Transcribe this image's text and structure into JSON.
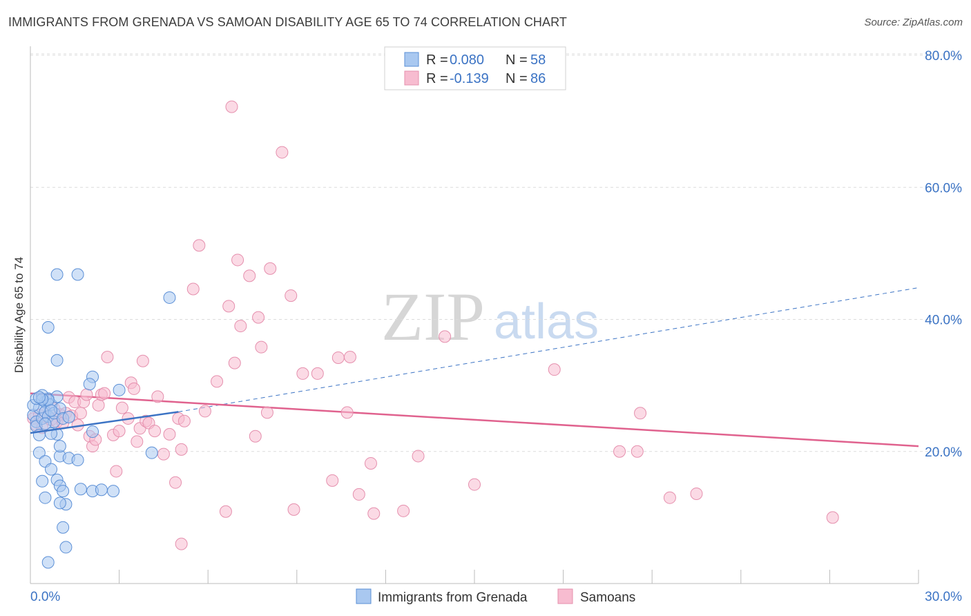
{
  "title": "IMMIGRANTS FROM GRENADA VS SAMOAN DISABILITY AGE 65 TO 74 CORRELATION CHART",
  "source": "Source: ZipAtlas.com",
  "watermark": {
    "zip": "ZIP",
    "atlas": "atlas"
  },
  "colors": {
    "blue_fill": "#a9c8f0",
    "blue_stroke": "#5b8fd6",
    "blue_line": "#3b73c4",
    "pink_fill": "#f7bcd0",
    "pink_stroke": "#e58fad",
    "pink_line": "#e0628e",
    "tick_text": "#3b73c4",
    "grid": "#dcdcdc"
  },
  "legend": {
    "rows": [
      {
        "r_label": "R =",
        "r_value": "0.080",
        "n_label": "N =",
        "n_value": "58"
      },
      {
        "r_label": "R =",
        "r_value": "-0.139",
        "n_label": "N =",
        "n_value": "86"
      }
    ]
  },
  "bottom_legend": [
    "Immigrants from Grenada",
    "Samoans"
  ],
  "chart_data": {
    "type": "scatter",
    "title": "IMMIGRANTS FROM GRENADA VS SAMOAN DISABILITY AGE 65 TO 74 CORRELATION CHART",
    "xlabel": "",
    "ylabel": "Disability Age 65 to 74",
    "xlim": [
      0,
      30
    ],
    "ylim": [
      0,
      80
    ],
    "x_tick_labels": [
      "0.0%",
      "30.0%"
    ],
    "y_ticks": [
      20,
      40,
      60,
      80
    ],
    "y_tick_labels": [
      "20.0%",
      "40.0%",
      "60.0%",
      "80.0%"
    ],
    "grid": "horizontal dashed",
    "legend_position": "top-center",
    "series": [
      {
        "name": "Immigrants from Grenada",
        "r": 0.08,
        "n": 58,
        "trend": {
          "x": [
            0.0,
            5.0
          ],
          "y": [
            22.8,
            26.0
          ],
          "extended": {
            "x": [
              5.0,
              30.0
            ],
            "y": [
              26.0,
              44.8
            ]
          }
        },
        "points": [
          [
            0.1,
            25.5
          ],
          [
            0.2,
            24.5
          ],
          [
            0.3,
            26.6
          ],
          [
            0.2,
            23.8
          ],
          [
            0.1,
            27.0
          ],
          [
            0.2,
            28.0
          ],
          [
            0.3,
            22.5
          ],
          [
            0.4,
            25.0
          ],
          [
            0.5,
            27.5
          ],
          [
            0.5,
            26.0
          ],
          [
            0.6,
            28.0
          ],
          [
            0.4,
            28.5
          ],
          [
            0.6,
            25.3
          ],
          [
            0.7,
            27.1
          ],
          [
            0.8,
            24.5
          ],
          [
            0.9,
            22.6
          ],
          [
            0.7,
            22.7
          ],
          [
            0.8,
            25.8
          ],
          [
            0.9,
            28.3
          ],
          [
            1.0,
            26.5
          ],
          [
            1.1,
            25.0
          ],
          [
            0.6,
            27.8
          ],
          [
            0.7,
            26.2
          ],
          [
            1.3,
            25.2
          ],
          [
            0.3,
            19.8
          ],
          [
            0.5,
            18.5
          ],
          [
            0.7,
            17.3
          ],
          [
            0.9,
            15.7
          ],
          [
            1.0,
            14.8
          ],
          [
            1.1,
            14.0
          ],
          [
            0.4,
            15.5
          ],
          [
            1.2,
            12.0
          ],
          [
            1.0,
            12.2
          ],
          [
            0.5,
            13.0
          ],
          [
            1.1,
            8.5
          ],
          [
            1.2,
            5.5
          ],
          [
            0.6,
            3.2
          ],
          [
            1.0,
            19.3
          ],
          [
            1.3,
            19.0
          ],
          [
            1.0,
            20.8
          ],
          [
            1.6,
            18.7
          ],
          [
            1.7,
            14.3
          ],
          [
            2.1,
            14.0
          ],
          [
            2.4,
            14.2
          ],
          [
            2.8,
            14.0
          ],
          [
            2.1,
            23.0
          ],
          [
            2.1,
            31.3
          ],
          [
            2.0,
            30.2
          ],
          [
            3.0,
            29.3
          ],
          [
            0.9,
            33.8
          ],
          [
            0.6,
            38.8
          ],
          [
            0.9,
            46.8
          ],
          [
            1.6,
            46.8
          ],
          [
            4.7,
            43.3
          ],
          [
            4.1,
            19.8
          ],
          [
            0.4,
            27.9
          ],
          [
            0.3,
            28.2
          ],
          [
            0.5,
            24.2
          ]
        ]
      },
      {
        "name": "Samoans",
        "r": -0.139,
        "n": 86,
        "trend": {
          "x": [
            0.0,
            30.0
          ],
          "y": [
            28.8,
            20.8
          ]
        },
        "points": [
          [
            0.1,
            25.0
          ],
          [
            0.2,
            24.0
          ],
          [
            0.3,
            25.5
          ],
          [
            0.4,
            23.6
          ],
          [
            0.5,
            26.0
          ],
          [
            0.6,
            25.2
          ],
          [
            0.7,
            24.8
          ],
          [
            0.8,
            26.5
          ],
          [
            0.9,
            24.5
          ],
          [
            1.0,
            25.6
          ],
          [
            1.1,
            24.3
          ],
          [
            1.2,
            25.8
          ],
          [
            1.3,
            28.2
          ],
          [
            1.4,
            25.4
          ],
          [
            1.5,
            27.5
          ],
          [
            1.6,
            24.0
          ],
          [
            1.7,
            25.8
          ],
          [
            1.8,
            27.5
          ],
          [
            1.9,
            28.6
          ],
          [
            2.0,
            22.3
          ],
          [
            2.1,
            20.8
          ],
          [
            2.2,
            21.8
          ],
          [
            2.3,
            27.0
          ],
          [
            2.4,
            28.6
          ],
          [
            2.5,
            28.8
          ],
          [
            2.6,
            34.3
          ],
          [
            2.8,
            22.5
          ],
          [
            2.9,
            17.0
          ],
          [
            3.0,
            23.1
          ],
          [
            3.1,
            26.6
          ],
          [
            3.3,
            25.0
          ],
          [
            3.4,
            30.4
          ],
          [
            3.5,
            29.5
          ],
          [
            3.6,
            21.5
          ],
          [
            3.7,
            23.5
          ],
          [
            3.8,
            33.7
          ],
          [
            3.9,
            24.6
          ],
          [
            4.0,
            24.3
          ],
          [
            4.2,
            23.1
          ],
          [
            4.3,
            28.3
          ],
          [
            4.5,
            19.6
          ],
          [
            4.7,
            22.6
          ],
          [
            4.9,
            15.3
          ],
          [
            5.0,
            25.0
          ],
          [
            5.1,
            20.3
          ],
          [
            5.2,
            24.6
          ],
          [
            5.5,
            44.6
          ],
          [
            5.7,
            51.2
          ],
          [
            5.9,
            26.1
          ],
          [
            6.3,
            30.6
          ],
          [
            6.6,
            10.9
          ],
          [
            6.7,
            42.0
          ],
          [
            6.8,
            72.2
          ],
          [
            6.9,
            33.4
          ],
          [
            7.0,
            49.0
          ],
          [
            7.1,
            39.0
          ],
          [
            7.4,
            46.6
          ],
          [
            7.6,
            22.3
          ],
          [
            7.7,
            40.3
          ],
          [
            7.8,
            35.8
          ],
          [
            8.0,
            25.9
          ],
          [
            8.1,
            47.7
          ],
          [
            8.5,
            65.3
          ],
          [
            8.8,
            43.6
          ],
          [
            8.9,
            11.2
          ],
          [
            9.2,
            31.8
          ],
          [
            9.7,
            31.8
          ],
          [
            10.2,
            15.6
          ],
          [
            10.4,
            34.2
          ],
          [
            10.7,
            25.9
          ],
          [
            10.8,
            34.3
          ],
          [
            11.1,
            13.5
          ],
          [
            11.5,
            18.2
          ],
          [
            11.6,
            10.6
          ],
          [
            12.6,
            11.0
          ],
          [
            13.1,
            19.3
          ],
          [
            14.0,
            37.4
          ],
          [
            15.0,
            15.0
          ],
          [
            17.7,
            32.4
          ],
          [
            19.9,
            20.0
          ],
          [
            20.5,
            20.0
          ],
          [
            20.6,
            25.8
          ],
          [
            21.6,
            13.0
          ],
          [
            22.5,
            13.6
          ],
          [
            27.1,
            10.0
          ],
          [
            5.1,
            6.0
          ]
        ]
      }
    ]
  }
}
